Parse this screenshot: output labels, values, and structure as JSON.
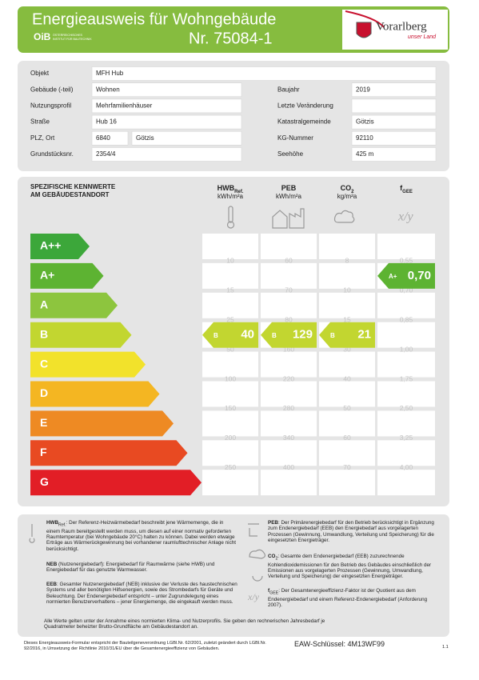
{
  "header": {
    "title": "Energieausweis für Wohngebäude",
    "number": "Nr. 75084-1",
    "oib_logo": "OiB",
    "oib_text": [
      "ÖSTERREICHISCHES",
      "INSTITUT FÜR BAUTECHNIK"
    ],
    "region": "Vorarlberg",
    "region_tagline": "unser Land"
  },
  "building": {
    "rows": [
      {
        "label": "Objekt",
        "value": "MFH Hub"
      },
      {
        "label": "Gebäude (-teil)",
        "value": "Wohnen",
        "label_right": "Baujahr",
        "value_right": "2019"
      },
      {
        "label": "Nutzungsprofil",
        "value": "Mehrfamilienhäuser",
        "label_right": "Letzte Veränderung"
      },
      {
        "label": "Straße",
        "value": "Hub 16",
        "label_right": "Katastralgemeinde",
        "value_right": "Götzis"
      },
      {
        "label": "PLZ, Ort",
        "value": "6840",
        "value2": "Götzis",
        "label_right": "KG-Nummer",
        "value_right": "92110"
      },
      {
        "label": "Grundstücksnr.",
        "value": "2354/4",
        "label_right": "Seehöhe",
        "value_right": "425 m"
      }
    ]
  },
  "ratings": {
    "title": [
      "SPEZIFISCHE KENNWERTE",
      "AM GEBÄUDESTANDORT"
    ],
    "classes": [
      {
        "name": "A++",
        "color": "#3ca73a"
      },
      {
        "name": "A+",
        "color": "#5db332"
      },
      {
        "name": "A",
        "color": "#8dc53e"
      },
      {
        "name": "B",
        "color": "#c2d630"
      },
      {
        "name": "C",
        "color": "#f2e22b"
      },
      {
        "name": "D",
        "color": "#f4b622"
      },
      {
        "name": "E",
        "color": "#ee8a23"
      },
      {
        "name": "F",
        "color": "#e84a22"
      },
      {
        "name": "G",
        "color": "#e21e26"
      }
    ],
    "columns": [
      {
        "name": "HWB",
        "sub": "Ref.",
        "unit": "kWh/m²a",
        "scale": [
          "10",
          "15",
          "25",
          "50",
          "100",
          "150",
          "200",
          "250"
        ],
        "rating": {
          "class": "B",
          "value": "40"
        }
      },
      {
        "name": "PEB",
        "unit": "kWh/m²a",
        "scale": [
          "60",
          "70",
          "80",
          "160",
          "220",
          "280",
          "340",
          "400"
        ],
        "rating": {
          "class": "B",
          "value": "129"
        }
      },
      {
        "name": "CO",
        "sub": "2",
        "unit": "kg/m²a",
        "scale": [
          "8",
          "10",
          "15",
          "30",
          "40",
          "50",
          "60",
          "70"
        ],
        "rating": {
          "class": "B",
          "value": "21"
        }
      },
      {
        "name": "f",
        "sub": "GEE",
        "scale": [
          "0,55",
          "0,70",
          "0,85",
          "1,00",
          "1,75",
          "2,50",
          "3,25",
          "4,00"
        ],
        "rating": {
          "class": "A+",
          "value": "0,70"
        }
      }
    ]
  },
  "legend": {
    "items": [
      {
        "term": "HWB",
        "sub": "Ref.",
        "text": ": Der Referenz-Heizwärmebedarf beschreibt jene Wärmemenge, die in einem Raum bereitgestellt werden muss, um diesen auf einer normativ geforderten Raumtemperatur (bei Wohngebäude 20°C) halten zu können. Dabei werden etwaige Erträge aus Wärmerückgewinnung bei vorhandener raumlufttechnischer Anlage nicht berücksichtigt."
      },
      {
        "term": "NEB",
        "text": " (Nutzenergiebedarf): Energiebedarf für Raumwärme (siehe HWB) und Energiebedarf für das genutzte Warmwasser."
      },
      {
        "term": "EEB",
        "text": ": Gesamter Nutzenergiebedarf (NEB) inklusive der Verluste des haustechnischen Systems und aller benötigten Hilfsenergien, sowie des Strombedarfs für Geräte und Beleuchtung. Der Endenergiebedarf entspricht – unter Zugrundelegung eines normierten Benutzerverhaltens – jener Energiemenge, die eingekauft werden muss."
      },
      {
        "term": "PEB",
        "text": ": Der Primärenergiebedarf für den Betrieb berücksichtigt in Ergänzung zum Endenergiebedarf (EEB) den Energiebedarf aus vorgelagerten Prozessen (Gewinnung, Umwandlung, Verteilung und Speicherung) für die eingesetzten Energieträger."
      },
      {
        "term": "CO",
        "sub": "2",
        "text": ": Gesamte dem Endenergiebedarf (EEB) zuzurechnende Kohlendioxidemissionen für den Betrieb des Gebäudes einschließlich der Emissionen aus vorgelagerten Prozessen (Gewinnung, Umwandlung, Verteilung und Speicherung) der eingesetzten Energieträger."
      },
      {
        "term": "f",
        "sub": "GEE",
        "text": ": Der Gesamtenergieeffizienz-Faktor ist der Quotient aus dem Endenergiebedarf und einem Referenz-Endenergiebedarf (Anforderung 2007)."
      }
    ],
    "note": "Alle Werte gelten unter der Annahme eines normierten Klima- und Nutzerprofils. Sie geben den rechnerischen Jahresbedarf je Quadratmeter beheizter Brutto-Grundfläche am Gebäudestandort an."
  },
  "footer": {
    "legal": "Dieses Energieausweis-Formular entspricht der Bauteilgeneverordnung LGBl.Nr. 62/2001, zuletzt geändert durch LGBl.Nr. 92/2016, in Umsetzung der Richtlinie 2010/31/EU über die Gesamtenergieeffizienz von Gebäuden.",
    "key": "EAW-Schlüssel: 4M13WF99",
    "version": "1.1"
  }
}
